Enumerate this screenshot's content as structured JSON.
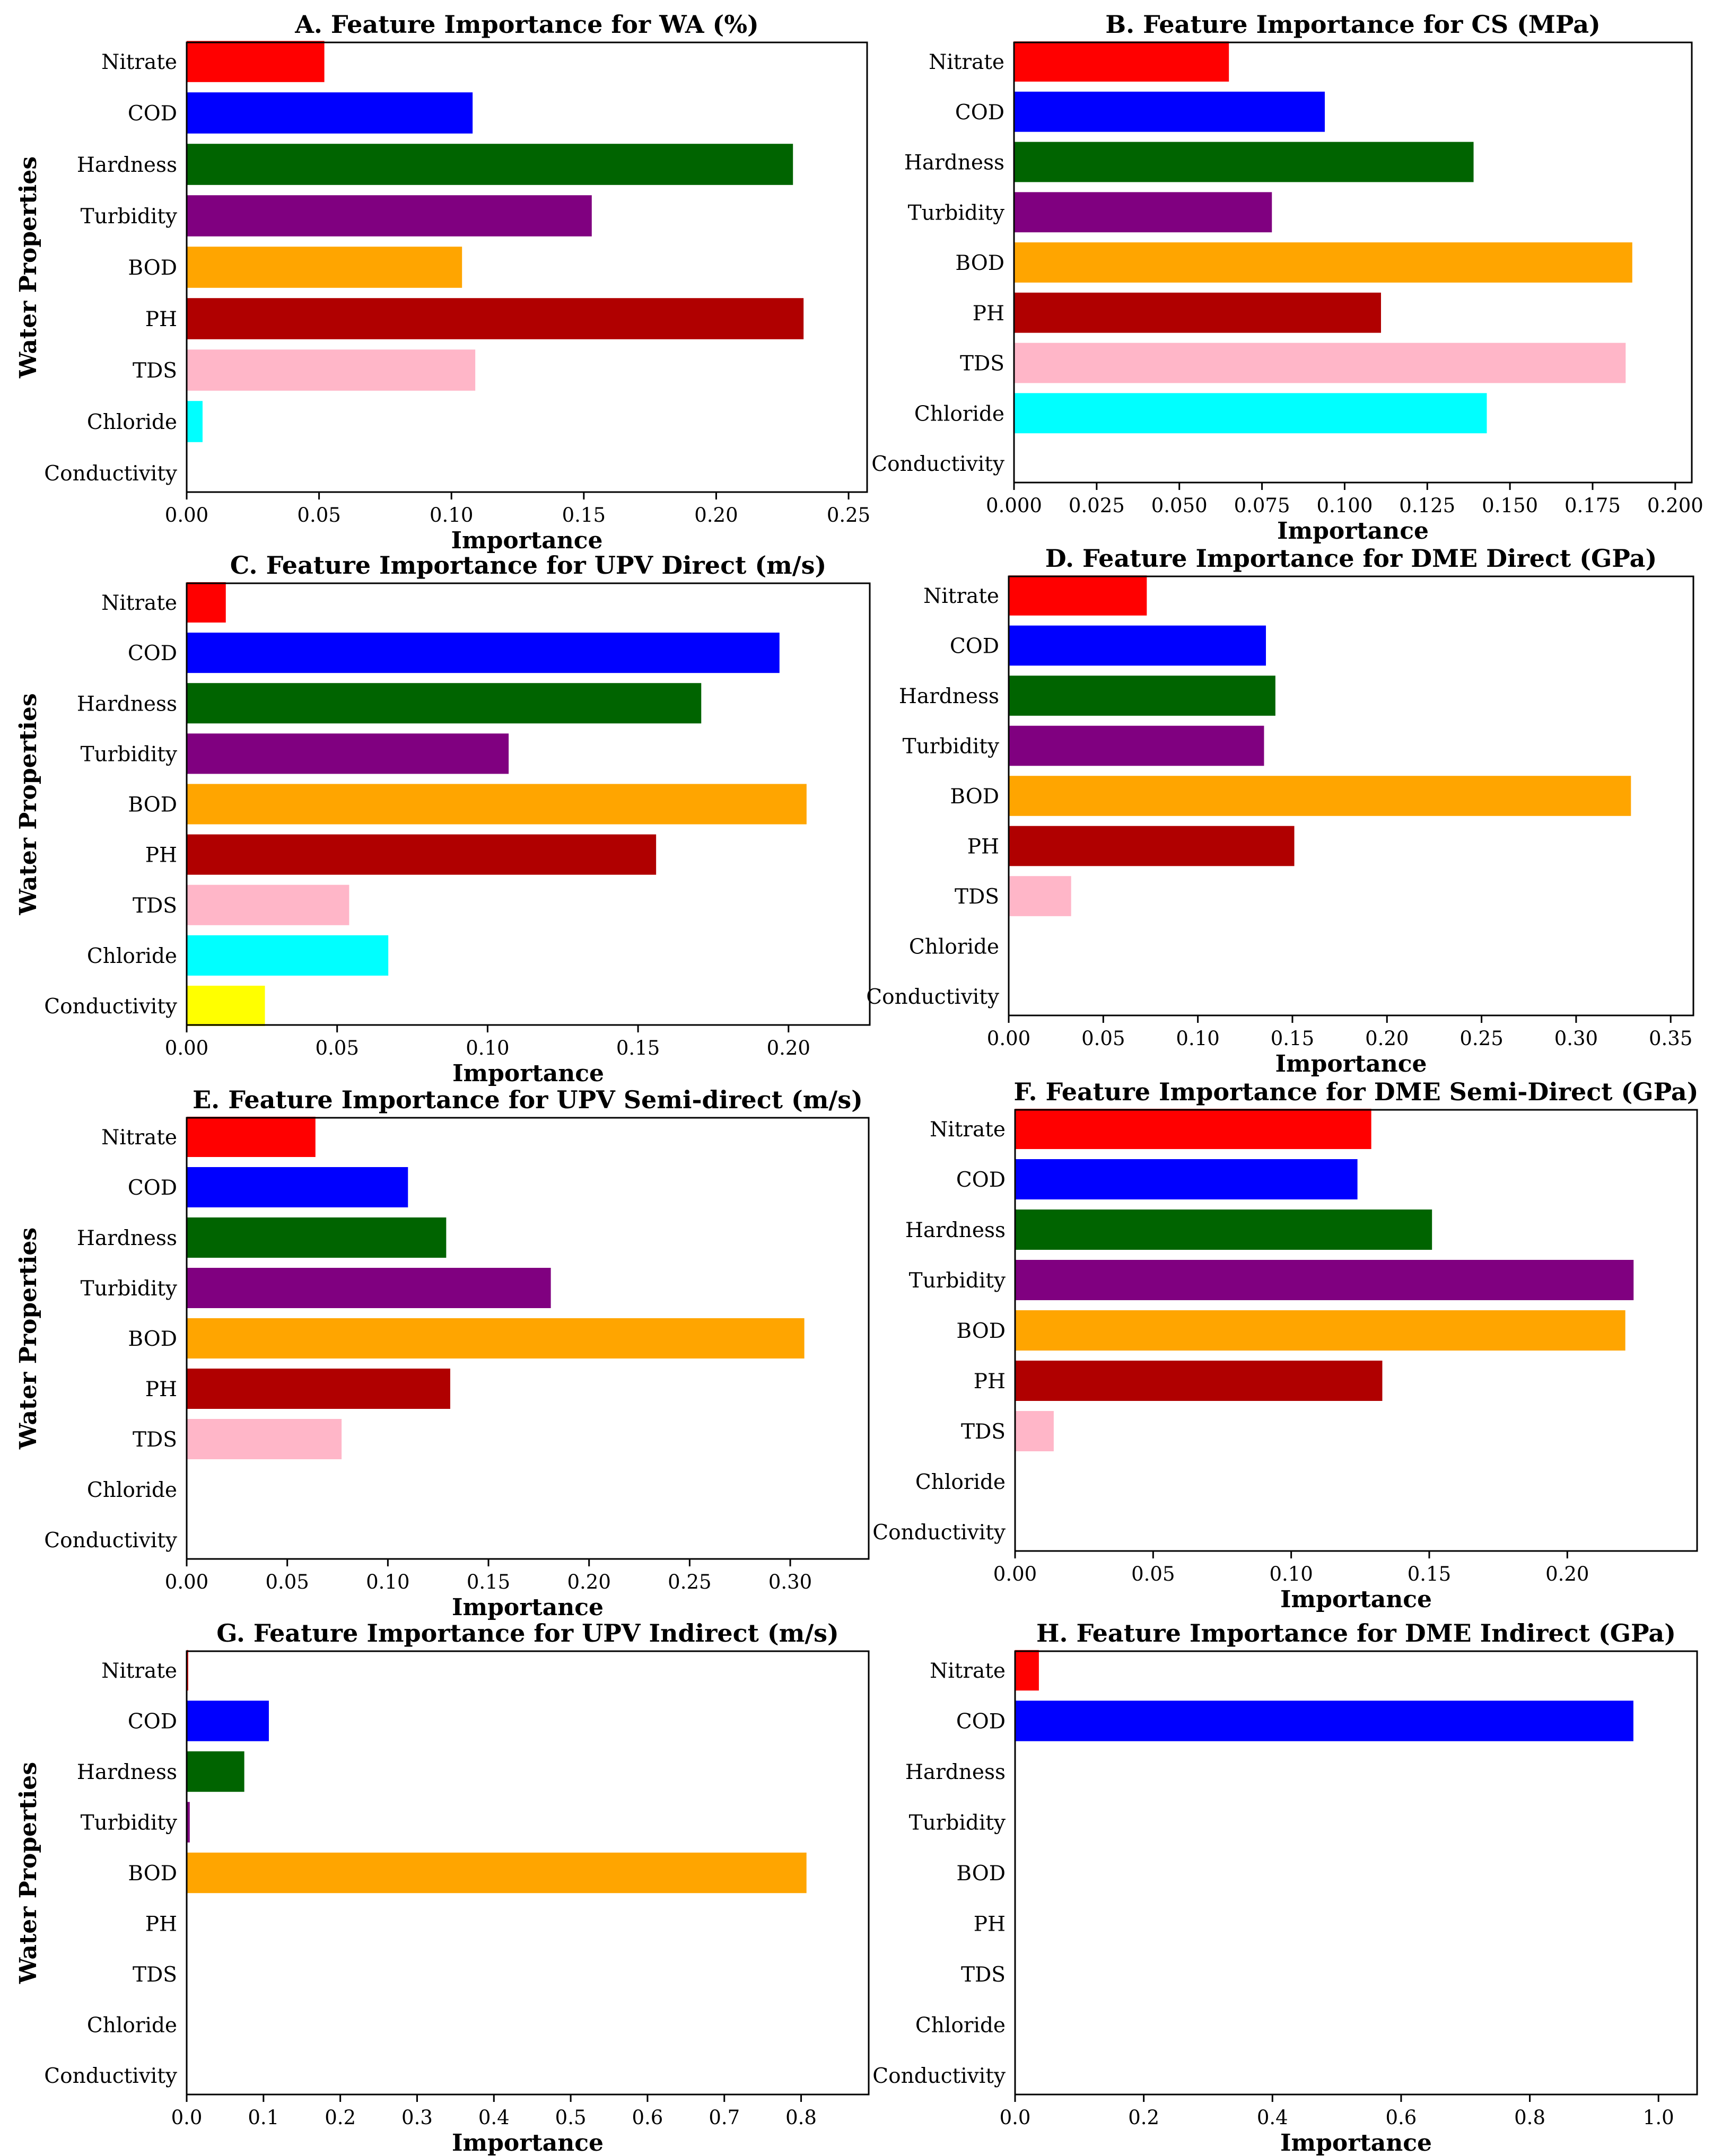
{
  "chart_data": [
    {
      "id": "A",
      "type": "bar",
      "orientation": "horizontal",
      "title": "A. Feature Importance for WA (%)",
      "xlabel": "Importance",
      "ylabel": "Water Properties",
      "categories": [
        "Nitrate",
        "COD",
        "Hardness",
        "Turbidity",
        "BOD",
        "PH",
        "TDS",
        "Chloride",
        "Conductivity"
      ],
      "values": [
        0.052,
        0.108,
        0.229,
        0.153,
        0.104,
        0.233,
        0.109,
        0.006,
        0.0
      ],
      "xlim": [
        0,
        0.257
      ],
      "xticks": [
        0.0,
        0.05,
        0.1,
        0.15,
        0.2,
        0.25
      ],
      "xtick_labels": [
        "0.00",
        "0.05",
        "0.10",
        "0.15",
        "0.20",
        "0.25"
      ],
      "show_ylabel": true
    },
    {
      "id": "B",
      "type": "bar",
      "orientation": "horizontal",
      "title": "B. Feature Importance for CS (MPa)",
      "xlabel": "Importance",
      "ylabel": "",
      "categories": [
        "Nitrate",
        "COD",
        "Hardness",
        "Turbidity",
        "BOD",
        "PH",
        "TDS",
        "Chloride",
        "Conductivity"
      ],
      "values": [
        0.065,
        0.094,
        0.139,
        0.078,
        0.187,
        0.111,
        0.185,
        0.143,
        0.0
      ],
      "xlim": [
        0,
        0.205
      ],
      "xticks": [
        0.0,
        0.025,
        0.05,
        0.075,
        0.1,
        0.125,
        0.15,
        0.175,
        0.2
      ],
      "xtick_labels": [
        "0.000",
        "0.025",
        "0.050",
        "0.075",
        "0.100",
        "0.125",
        "0.150",
        "0.175",
        "0.200"
      ],
      "show_ylabel": false
    },
    {
      "id": "C",
      "type": "bar",
      "orientation": "horizontal",
      "title": "C. Feature Importance for UPV Direct (m/s)",
      "xlabel": "Importance",
      "ylabel": "Water Properties",
      "categories": [
        "Nitrate",
        "COD",
        "Hardness",
        "Turbidity",
        "BOD",
        "PH",
        "TDS",
        "Chloride",
        "Conductivity"
      ],
      "values": [
        0.013,
        0.197,
        0.171,
        0.107,
        0.206,
        0.156,
        0.054,
        0.067,
        0.026
      ],
      "xlim": [
        0,
        0.227
      ],
      "xticks": [
        0.0,
        0.05,
        0.1,
        0.15,
        0.2
      ],
      "xtick_labels": [
        "0.00",
        "0.05",
        "0.10",
        "0.15",
        "0.20"
      ],
      "show_ylabel": true
    },
    {
      "id": "D",
      "type": "bar",
      "orientation": "horizontal",
      "title": "D. Feature Importance for DME Direct (GPa)",
      "xlabel": "Importance",
      "ylabel": "",
      "categories": [
        "Nitrate",
        "COD",
        "Hardness",
        "Turbidity",
        "BOD",
        "PH",
        "TDS",
        "Chloride",
        "Conductivity"
      ],
      "values": [
        0.073,
        0.136,
        0.141,
        0.135,
        0.329,
        0.151,
        0.033,
        0.0,
        0.0
      ],
      "xlim": [
        0,
        0.362
      ],
      "xticks": [
        0.0,
        0.05,
        0.1,
        0.15,
        0.2,
        0.25,
        0.3,
        0.35
      ],
      "xtick_labels": [
        "0.00",
        "0.05",
        "0.10",
        "0.15",
        "0.20",
        "0.25",
        "0.30",
        "0.35"
      ],
      "show_ylabel": false
    },
    {
      "id": "E",
      "type": "bar",
      "orientation": "horizontal",
      "title": "E. Feature Importance for UPV Semi-direct (m/s)",
      "xlabel": "Importance",
      "ylabel": "Water Properties",
      "categories": [
        "Nitrate",
        "COD",
        "Hardness",
        "Turbidity",
        "BOD",
        "PH",
        "TDS",
        "Chloride",
        "Conductivity"
      ],
      "values": [
        0.064,
        0.11,
        0.129,
        0.181,
        0.307,
        0.131,
        0.077,
        0.0,
        0.0
      ],
      "xlim": [
        0,
        0.339
      ],
      "xticks": [
        0.0,
        0.05,
        0.1,
        0.15,
        0.2,
        0.25,
        0.3
      ],
      "xtick_labels": [
        "0.00",
        "0.05",
        "0.10",
        "0.15",
        "0.20",
        "0.25",
        "0.30"
      ],
      "show_ylabel": true
    },
    {
      "id": "F",
      "type": "bar",
      "orientation": "horizontal",
      "title": "F. Feature Importance for DME Semi-Direct (GPa)",
      "xlabel": "Importance",
      "ylabel": "",
      "categories": [
        "Nitrate",
        "COD",
        "Hardness",
        "Turbidity",
        "BOD",
        "PH",
        "TDS",
        "Chloride",
        "Conductivity"
      ],
      "values": [
        0.129,
        0.124,
        0.151,
        0.224,
        0.221,
        0.133,
        0.014,
        0.0,
        0.0
      ],
      "xlim": [
        0,
        0.247
      ],
      "xticks": [
        0.0,
        0.05,
        0.1,
        0.15,
        0.2
      ],
      "xtick_labels": [
        "0.00",
        "0.05",
        "0.10",
        "0.15",
        "0.20"
      ],
      "show_ylabel": false
    },
    {
      "id": "G",
      "type": "bar",
      "orientation": "horizontal",
      "title": "G. Feature Importance for UPV Indirect (m/s)",
      "xlabel": "Importance",
      "ylabel": "Water Properties",
      "categories": [
        "Nitrate",
        "COD",
        "Hardness",
        "Turbidity",
        "BOD",
        "PH",
        "TDS",
        "Chloride",
        "Conductivity"
      ],
      "values": [
        0.002,
        0.107,
        0.075,
        0.004,
        0.807,
        0.0,
        0.0,
        0.0,
        0.0
      ],
      "xlim": [
        0,
        0.888
      ],
      "xticks": [
        0.0,
        0.1,
        0.2,
        0.3,
        0.4,
        0.5,
        0.6,
        0.7,
        0.8
      ],
      "xtick_labels": [
        "0.0",
        "0.1",
        "0.2",
        "0.3",
        "0.4",
        "0.5",
        "0.6",
        "0.7",
        "0.8"
      ],
      "show_ylabel": true
    },
    {
      "id": "H",
      "type": "bar",
      "orientation": "horizontal",
      "title": "H. Feature Importance for DME Indirect (GPa)",
      "xlabel": "Importance",
      "ylabel": "",
      "categories": [
        "Nitrate",
        "COD",
        "Hardness",
        "Turbidity",
        "BOD",
        "PH",
        "TDS",
        "Chloride",
        "Conductivity"
      ],
      "values": [
        0.037,
        0.961,
        0.0,
        0.0,
        0.0,
        0.0,
        0.0,
        0.0,
        0.0
      ],
      "xlim": [
        0,
        1.06
      ],
      "xticks": [
        0.0,
        0.2,
        0.4,
        0.6,
        0.8,
        1.0
      ],
      "xtick_labels": [
        "0.0",
        "0.2",
        "0.4",
        "0.6",
        "0.8",
        "1.0"
      ],
      "show_ylabel": false
    }
  ],
  "colors": {
    "Nitrate": "#ff0000",
    "COD": "#0000ff",
    "Hardness": "#006400",
    "Turbidity": "#800080",
    "BOD": "#ffa500",
    "PH": "#b00000",
    "TDS": "#ffb6c8",
    "Chloride": "#00ffff",
    "Conductivity": "#ffff00"
  },
  "grid": false,
  "legend": "none"
}
